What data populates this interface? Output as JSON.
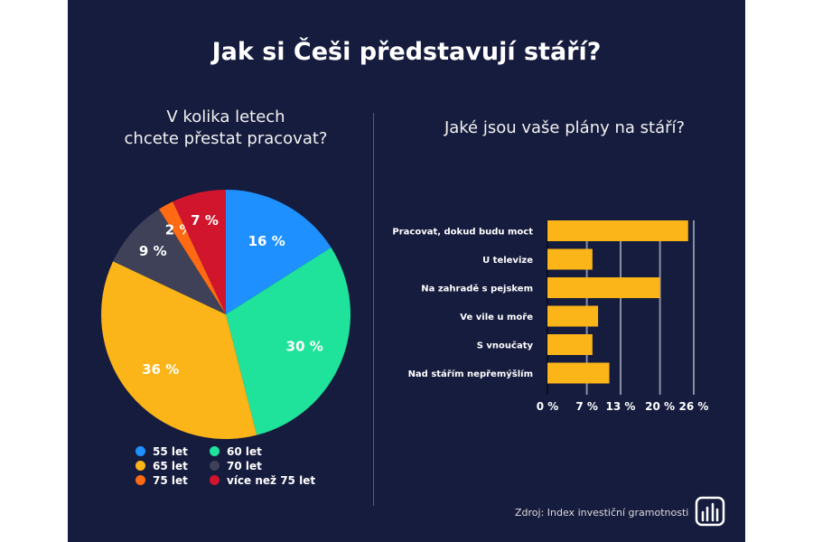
{
  "title": "Jak si Češi představují stáří?",
  "source": "Zdroj: Index investiční gramotnosti",
  "logo_icon": "bar-chart-logo-icon",
  "chart_data": [
    {
      "type": "pie",
      "title": "V kolika letech chcete přestat pracovat?",
      "title_lines": [
        "V kolika letech",
        "chcete přestat pracovat?"
      ],
      "slices": [
        {
          "label": "55 let",
          "value": 16,
          "data_label": "16 %",
          "color": "#1e90ff"
        },
        {
          "label": "60 let",
          "value": 30,
          "data_label": "30 %",
          "color": "#1fe39a"
        },
        {
          "label": "65 let",
          "value": 36,
          "data_label": "36 %",
          "color": "#fbb518"
        },
        {
          "label": "70 let",
          "value": 9,
          "data_label": "9 %",
          "color": "#3e4157"
        },
        {
          "label": "75 let",
          "value": 2,
          "data_label": "2 %",
          "color": "#ff6a13"
        },
        {
          "label": "více než 75 let",
          "value": 7,
          "data_label": "7 %",
          "color": "#d0152c"
        }
      ],
      "start": "top",
      "direction": "clockwise",
      "legend": "bottom"
    },
    {
      "type": "bar",
      "orientation": "horizontal",
      "title": "Jaké jsou vaše plány na stáří?",
      "categories": [
        "Pracovat, dokud budu moct",
        "U televize",
        "Na zahradě s pejskem",
        "Ve vile u moře",
        "S vnoučaty",
        "Nad stářím nepřemýšlím"
      ],
      "values": [
        25,
        8,
        20,
        9,
        8,
        11
      ],
      "unit": "%",
      "xlim": [
        0,
        26
      ],
      "ticks": [
        0,
        7,
        13,
        20,
        26
      ],
      "tick_labels": [
        "0 %",
        "7 %",
        "13 %",
        "20 %",
        "26 %"
      ],
      "grid": true,
      "color": "#fbb518"
    }
  ]
}
